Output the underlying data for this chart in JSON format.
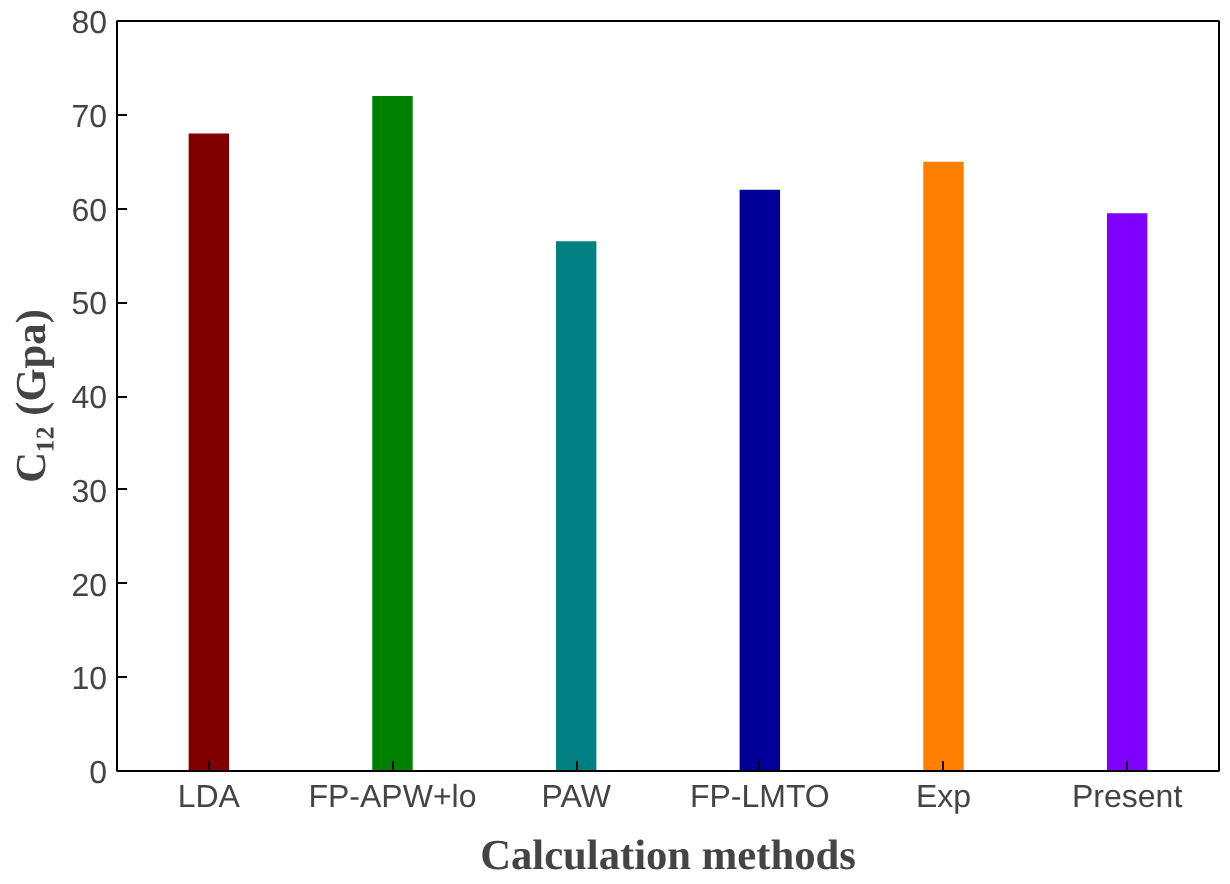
{
  "chart_data": {
    "type": "bar",
    "xlabel": "Calculation methods",
    "ylabel": "C₁₂ (Gpa)",
    "categories": [
      "LDA",
      "FP-APW+lo",
      "PAW",
      "FP-LMTO",
      "Exp",
      "Present"
    ],
    "values": [
      68,
      72,
      56.5,
      62,
      65,
      59.5
    ],
    "colors": [
      "#800000",
      "#008000",
      "#008080",
      "#000099",
      "#ff8000",
      "#8000ff"
    ],
    "ylim": [
      0,
      80
    ],
    "yticks": [
      0,
      10,
      20,
      30,
      40,
      50,
      60,
      70,
      80
    ],
    "grid": false
  }
}
